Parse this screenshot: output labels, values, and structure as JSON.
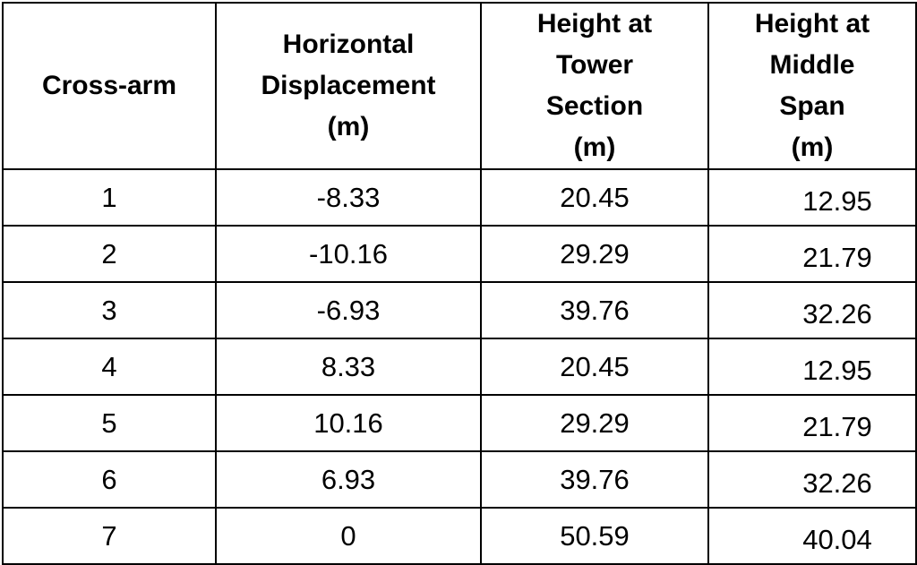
{
  "table": {
    "header": [
      "Cross-arm",
      "Horizontal\nDisplacement\n(m)",
      "Height at\nTower\nSection\n(m)",
      "Height at\nMiddle\nSpan\n(m)"
    ],
    "rows": [
      [
        "1",
        "-8.33",
        "20.45",
        "12.95"
      ],
      [
        "2",
        "-10.16",
        "29.29",
        "21.79"
      ],
      [
        "3",
        "-6.93",
        "39.76",
        "32.26"
      ],
      [
        "4",
        "8.33",
        "20.45",
        "12.95"
      ],
      [
        "5",
        "10.16",
        "29.29",
        "21.79"
      ],
      [
        "6",
        "6.93",
        "39.76",
        "32.26"
      ],
      [
        "7",
        "0",
        "50.59",
        "40.04"
      ]
    ]
  }
}
